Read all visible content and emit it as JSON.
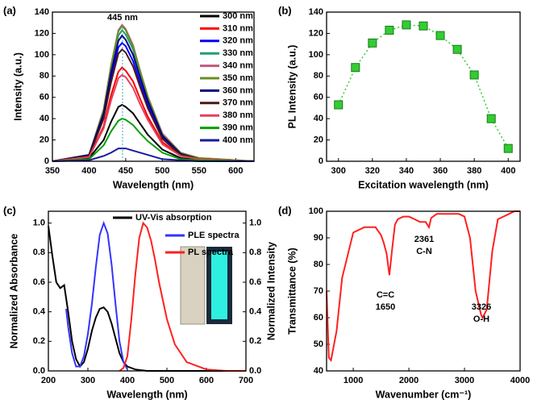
{
  "chart_data": [
    {
      "type": "line",
      "label": "(a)",
      "x_label": "Wavelength (nm)",
      "y_label": "Intensity (a.u.)",
      "annotations": [
        "445 nm"
      ],
      "x": [
        350,
        400,
        420,
        430,
        440,
        445,
        450,
        460,
        470,
        480,
        500,
        525,
        550,
        625
      ],
      "xlim": [
        350,
        625
      ],
      "xticks": [
        350,
        400,
        450,
        500,
        550,
        600
      ],
      "ylim": [
        0,
        140
      ],
      "yticks": [
        0,
        20,
        40,
        60,
        80,
        100,
        120,
        140
      ],
      "series": [
        {
          "name": "300 nm",
          "color": "#000000",
          "values": [
            0,
            3,
            20,
            37,
            51,
            53,
            51,
            45,
            35,
            25,
            11,
            3,
            1,
            0
          ]
        },
        {
          "name": "310 nm",
          "color": "#ff0000",
          "values": [
            0,
            4,
            33,
            62,
            84,
            88,
            85,
            75,
            58,
            42,
            18,
            5,
            2,
            0
          ]
        },
        {
          "name": "320 nm",
          "color": "#0000ff",
          "values": [
            0,
            6,
            42,
            78,
            107,
            111,
            108,
            94,
            73,
            53,
            22,
            7,
            2,
            0
          ]
        },
        {
          "name": "330 nm",
          "color": "#1f9e7a",
          "values": [
            0,
            6,
            47,
            86,
            118,
            123,
            119,
            105,
            81,
            59,
            25,
            7,
            2,
            0
          ]
        },
        {
          "name": "340 nm",
          "color": "#c05a7a",
          "values": [
            0,
            6,
            49,
            90,
            123,
            128,
            124,
            109,
            84,
            61,
            26,
            8,
            3,
            0
          ]
        },
        {
          "name": "350 nm",
          "color": "#6b8e23",
          "values": [
            0,
            6,
            48,
            89,
            122,
            127,
            123,
            108,
            84,
            61,
            25,
            8,
            3,
            0
          ]
        },
        {
          "name": "360 nm",
          "color": "#000080",
          "values": [
            0,
            6,
            45,
            83,
            113,
            118,
            114,
            100,
            78,
            57,
            24,
            7,
            2,
            0
          ]
        },
        {
          "name": "370 nm",
          "color": "#4a1818",
          "values": [
            0,
            5,
            40,
            74,
            101,
            105,
            102,
            89,
            69,
            50,
            21,
            6,
            2,
            0
          ]
        },
        {
          "name": "380 nm",
          "color": "#e8405e",
          "values": [
            0,
            4,
            31,
            57,
            78,
            81,
            79,
            69,
            53,
            39,
            16,
            5,
            2,
            0
          ]
        },
        {
          "name": "390 nm",
          "color": "#00a000",
          "values": [
            0,
            2,
            15,
            28,
            38,
            40,
            39,
            34,
            26,
            19,
            8,
            2,
            1,
            0
          ]
        },
        {
          "name": "400 nm",
          "color": "#1a1aa0",
          "values": [
            0,
            1,
            5,
            8,
            12,
            12,
            12,
            10,
            8,
            6,
            2,
            1,
            0,
            0
          ]
        }
      ]
    },
    {
      "type": "scatter",
      "label": "(b)",
      "x_label": "Excitation wavelength (nm)",
      "y_label": "PL Intensity (a.u.)",
      "x": [
        300,
        310,
        320,
        330,
        340,
        350,
        360,
        370,
        380,
        390,
        400
      ],
      "values": [
        53,
        88,
        111,
        123,
        128,
        127,
        118,
        105,
        81,
        40,
        12
      ],
      "color": "#33cc33",
      "xlim": [
        293,
        407
      ],
      "xticks": [
        300,
        320,
        340,
        360,
        380,
        400
      ],
      "ylim": [
        0,
        140
      ],
      "yticks": [
        0,
        20,
        40,
        60,
        80,
        100,
        120,
        140
      ]
    },
    {
      "type": "line",
      "label": "(c)",
      "x_label": "Wavelength (nm)",
      "y_label": "Normalized Absorbance",
      "y2_label": "Normalized Intensity",
      "xlim": [
        200,
        700
      ],
      "xticks": [
        200,
        300,
        400,
        500,
        600,
        700
      ],
      "ylim": [
        0,
        1.08
      ],
      "yticks": [
        {
          "value": 0,
          "label": "0.0"
        },
        0.2,
        0.4,
        0.6,
        0.8,
        {
          "value": 1,
          "label": "1.0"
        }
      ],
      "y2lim": [
        0,
        1.08
      ],
      "y2ticks": [
        {
          "value": 0,
          "label": "0.0"
        },
        0.2,
        0.4,
        0.6,
        0.8,
        {
          "value": 1,
          "label": "1.0"
        }
      ],
      "series": [
        {
          "name": "UV-Vis absorption",
          "color": "#000000",
          "x": [
            200,
            210,
            220,
            230,
            240,
            250,
            260,
            270,
            280,
            290,
            300,
            310,
            320,
            330,
            340,
            350,
            360,
            370,
            380,
            390,
            400,
            420,
            450,
            500,
            700
          ],
          "values": [
            0.98,
            0.78,
            0.6,
            0.56,
            0.58,
            0.4,
            0.2,
            0.08,
            0.03,
            0.06,
            0.15,
            0.27,
            0.36,
            0.42,
            0.43,
            0.4,
            0.32,
            0.22,
            0.12,
            0.06,
            0.03,
            0.01,
            0,
            0,
            0
          ]
        },
        {
          "name": "PLE spectra",
          "color": "#3333ff",
          "axis": "y2",
          "x": [
            245,
            250,
            260,
            270,
            280,
            290,
            300,
            310,
            320,
            330,
            340,
            350,
            360,
            370,
            380,
            390,
            400
          ],
          "values": [
            0.42,
            0.3,
            0.12,
            0.03,
            0.03,
            0.1,
            0.25,
            0.45,
            0.7,
            0.92,
            1.0,
            0.93,
            0.72,
            0.45,
            0.2,
            0.06,
            0.01
          ]
        },
        {
          "name": "PL spectra",
          "color": "#ff2020",
          "axis": "y2",
          "x": [
            380,
            390,
            400,
            410,
            420,
            430,
            440,
            450,
            460,
            470,
            480,
            500,
            520,
            550,
            600,
            650,
            700
          ],
          "values": [
            0,
            0.02,
            0.1,
            0.35,
            0.65,
            0.9,
            1.0,
            0.97,
            0.88,
            0.75,
            0.6,
            0.35,
            0.18,
            0.06,
            0.01,
            0,
            0
          ]
        }
      ]
    },
    {
      "type": "line",
      "label": "(d)",
      "x_label": "Wavenumber (cm⁻¹)",
      "y_label": "Transmittance (%)",
      "annotations": [
        "C=C",
        "1650",
        "2361",
        "C-N",
        "3326",
        "O-H"
      ],
      "x": [
        520,
        560,
        600,
        700,
        800,
        1000,
        1200,
        1400,
        1500,
        1550,
        1600,
        1650,
        1700,
        1750,
        1800,
        1900,
        2000,
        2100,
        2200,
        2300,
        2361,
        2400,
        2500,
        2700,
        2900,
        3000,
        3100,
        3200,
        3300,
        3326,
        3400,
        3500,
        3600,
        3700,
        3800,
        3900,
        4000
      ],
      "values": [
        70,
        45,
        44,
        55,
        75,
        92,
        94,
        94,
        91,
        88,
        84,
        76,
        86,
        95,
        97,
        98,
        98,
        97,
        96,
        96,
        94,
        97.5,
        99,
        99,
        99,
        98,
        90,
        70,
        61,
        60,
        63,
        85,
        97,
        98,
        99,
        100,
        100
      ],
      "color": "#ff2020",
      "xlim": [
        520,
        4000
      ],
      "xticks": [
        1000,
        2000,
        3000,
        4000
      ],
      "ylim": [
        40,
        100
      ],
      "yticks": [
        40,
        50,
        60,
        70,
        80,
        90,
        100
      ]
    }
  ]
}
